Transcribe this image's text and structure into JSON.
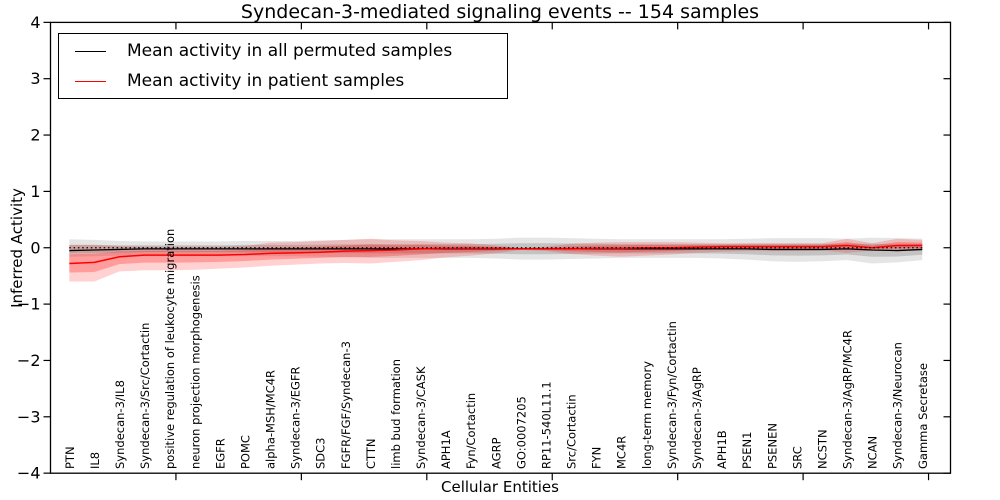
{
  "chart_data": {
    "type": "line",
    "title": "Syndecan-3-mediated signaling events -- 154 samples",
    "xlabel": "Cellular Entities",
    "ylabel": "Inferred Activity",
    "ylim": [
      -4,
      4
    ],
    "yticks": [
      -4,
      -3,
      -2,
      -1,
      0,
      1,
      2,
      3,
      4
    ],
    "ytick_labels": [
      "−4",
      "−3",
      "−2",
      "−1",
      "0",
      "1",
      "2",
      "3",
      "4"
    ],
    "grid": false,
    "legend_position": "upper left",
    "zero_reference_line": 0,
    "categories": [
      "PTN",
      "IL8",
      "Syndecan-3/IL8",
      "Syndecan-3/Src/Cortactin",
      "positive regulation of leukocyte migration",
      "neuron projection morphogenesis",
      "EGFR",
      "POMC",
      "alpha-MSH/MC4R",
      "Syndecan-3/EGFR",
      "SDC3",
      "FGFR/FGF/Syndecan-3",
      "CTTN",
      "limb bud formation",
      "Syndecan-3/CASK",
      "APH1A",
      "Fyn/Cortactin",
      "AGRP",
      "GO:0007205",
      "RP11-540L11.1",
      "Src/Cortactin",
      "FYN",
      "MC4R",
      "long-term memory",
      "Syndecan-3/Fyn/Cortactin",
      "Syndecan-3/AgRP",
      "APH1B",
      "PSEN1",
      "PSENEN",
      "SRC",
      "NCSTN",
      "Syndecan-3/AgRP/MC4R",
      "NCAN",
      "Syndecan-3/Neurocan",
      "Gamma Secretase"
    ],
    "series": [
      {
        "name": "Mean activity in all permuted samples",
        "color": "#000000",
        "band_alpha_outer": 0.1,
        "band_alpha_inner": 0.15,
        "mean": [
          -0.05,
          -0.04,
          -0.03,
          -0.02,
          -0.02,
          -0.02,
          -0.02,
          -0.02,
          -0.02,
          -0.02,
          -0.02,
          -0.02,
          -0.02,
          -0.02,
          -0.02,
          -0.02,
          -0.02,
          -0.02,
          -0.02,
          -0.02,
          -0.02,
          -0.02,
          -0.02,
          -0.02,
          -0.02,
          -0.02,
          -0.02,
          -0.02,
          -0.03,
          -0.03,
          -0.03,
          -0.02,
          -0.04,
          -0.05,
          -0.03
        ],
        "band_hi": [
          0.15,
          0.14,
          0.12,
          0.11,
          0.11,
          0.11,
          0.11,
          0.12,
          0.12,
          0.12,
          0.13,
          0.14,
          0.15,
          0.15,
          0.15,
          0.15,
          0.15,
          0.16,
          0.18,
          0.18,
          0.17,
          0.16,
          0.15,
          0.15,
          0.15,
          0.15,
          0.15,
          0.16,
          0.17,
          0.17,
          0.17,
          0.16,
          0.18,
          0.17,
          0.16
        ],
        "band_lo": [
          -0.16,
          -0.15,
          -0.14,
          -0.13,
          -0.13,
          -0.13,
          -0.13,
          -0.14,
          -0.15,
          -0.15,
          -0.16,
          -0.17,
          -0.18,
          -0.18,
          -0.18,
          -0.18,
          -0.18,
          -0.19,
          -0.21,
          -0.21,
          -0.2,
          -0.19,
          -0.18,
          -0.18,
          -0.18,
          -0.18,
          -0.19,
          -0.21,
          -0.24,
          -0.25,
          -0.24,
          -0.22,
          -0.28,
          -0.26,
          -0.22
        ]
      },
      {
        "name": "Mean activity in patient samples",
        "color": "#ff0000",
        "band_alpha_outer": 0.18,
        "band_alpha_inner": 0.25,
        "mean": [
          -0.28,
          -0.26,
          -0.16,
          -0.13,
          -0.13,
          -0.13,
          -0.13,
          -0.12,
          -0.1,
          -0.09,
          -0.08,
          -0.06,
          -0.05,
          -0.04,
          -0.02,
          -0.01,
          -0.01,
          -0.01,
          -0.02,
          -0.02,
          -0.02,
          -0.01,
          -0.01,
          0.0,
          0.0,
          0.01,
          0.02,
          0.02,
          0.02,
          0.02,
          0.02,
          0.04,
          0.0,
          0.04,
          0.04
        ],
        "band_hi": [
          0.05,
          0.05,
          0.03,
          0.02,
          0.02,
          0.02,
          0.02,
          0.03,
          0.09,
          0.1,
          0.12,
          0.14,
          0.16,
          0.13,
          0.12,
          0.09,
          0.08,
          0.04,
          0.0,
          0.02,
          0.07,
          0.09,
          0.1,
          0.1,
          0.1,
          0.09,
          0.08,
          0.08,
          0.08,
          0.08,
          0.08,
          0.16,
          0.08,
          0.16,
          0.14
        ],
        "band_lo": [
          -0.6,
          -0.6,
          -0.42,
          -0.4,
          -0.4,
          -0.39,
          -0.37,
          -0.35,
          -0.32,
          -0.3,
          -0.28,
          -0.27,
          -0.28,
          -0.25,
          -0.22,
          -0.17,
          -0.14,
          -0.1,
          -0.04,
          -0.06,
          -0.11,
          -0.14,
          -0.16,
          -0.14,
          -0.12,
          -0.09,
          -0.07,
          -0.06,
          -0.06,
          -0.06,
          -0.05,
          -0.09,
          -0.05,
          -0.06,
          -0.05
        ]
      }
    ]
  }
}
